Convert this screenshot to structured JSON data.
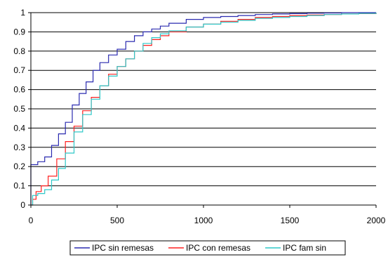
{
  "chart_data": {
    "type": "line",
    "title": "",
    "xlabel": "",
    "ylabel": "",
    "xlim": [
      0,
      2000
    ],
    "ylim": [
      0,
      1
    ],
    "x_ticks": [
      "0",
      "500",
      "1000",
      "1500",
      "2000"
    ],
    "y_ticks": [
      "0",
      "0.1",
      "0.2",
      "0.3",
      "0.4",
      "0.5",
      "0.6",
      "0.7",
      "0.8",
      "0.9",
      "1"
    ],
    "grid": "horizontal",
    "legend_position": "bottom",
    "series": [
      {
        "name": "IPC sin remesas",
        "color": "#2b2bb0",
        "x": [
          0,
          0,
          40,
          80,
          120,
          160,
          200,
          240,
          280,
          320,
          360,
          400,
          450,
          500,
          550,
          600,
          650,
          700,
          750,
          800,
          900,
          1000,
          1100,
          1200,
          1300,
          1400,
          1500,
          1600,
          1700,
          1800,
          1830
        ],
        "y": [
          0,
          0.21,
          0.225,
          0.25,
          0.31,
          0.37,
          0.43,
          0.52,
          0.58,
          0.64,
          0.7,
          0.74,
          0.78,
          0.81,
          0.85,
          0.88,
          0.9,
          0.915,
          0.93,
          0.945,
          0.965,
          0.975,
          0.98,
          0.985,
          0.99,
          0.993,
          0.995,
          0.997,
          0.998,
          1.0,
          1.0
        ]
      },
      {
        "name": "IPC con remesas",
        "color": "#ff2020",
        "x": [
          0,
          10,
          30,
          60,
          100,
          150,
          200,
          250,
          300,
          350,
          400,
          450,
          500,
          550,
          600,
          650,
          700,
          750,
          800,
          900,
          1000,
          1100,
          1200,
          1300,
          1400,
          1500,
          1600,
          1700,
          1800,
          1900,
          2000
        ],
        "y": [
          0,
          0.03,
          0.07,
          0.1,
          0.15,
          0.24,
          0.33,
          0.41,
          0.49,
          0.56,
          0.62,
          0.68,
          0.72,
          0.76,
          0.8,
          0.83,
          0.86,
          0.88,
          0.9,
          0.925,
          0.94,
          0.955,
          0.965,
          0.975,
          0.98,
          0.985,
          0.988,
          0.99,
          0.993,
          0.995,
          1.0
        ]
      },
      {
        "name": "IPC fam sin",
        "color": "#2ec8c8",
        "x": [
          0,
          10,
          40,
          80,
          120,
          160,
          200,
          250,
          300,
          350,
          400,
          450,
          500,
          550,
          600,
          650,
          700,
          750,
          800,
          900,
          1000,
          1100,
          1200,
          1300,
          1400,
          1500,
          1600,
          1700,
          1800,
          1900,
          2000
        ],
        "y": [
          0,
          0.05,
          0.06,
          0.08,
          0.13,
          0.19,
          0.27,
          0.38,
          0.47,
          0.55,
          0.62,
          0.67,
          0.72,
          0.76,
          0.8,
          0.84,
          0.87,
          0.89,
          0.905,
          0.925,
          0.94,
          0.95,
          0.96,
          0.97,
          0.975,
          0.98,
          0.985,
          0.99,
          0.993,
          0.996,
          1.0
        ]
      }
    ]
  }
}
